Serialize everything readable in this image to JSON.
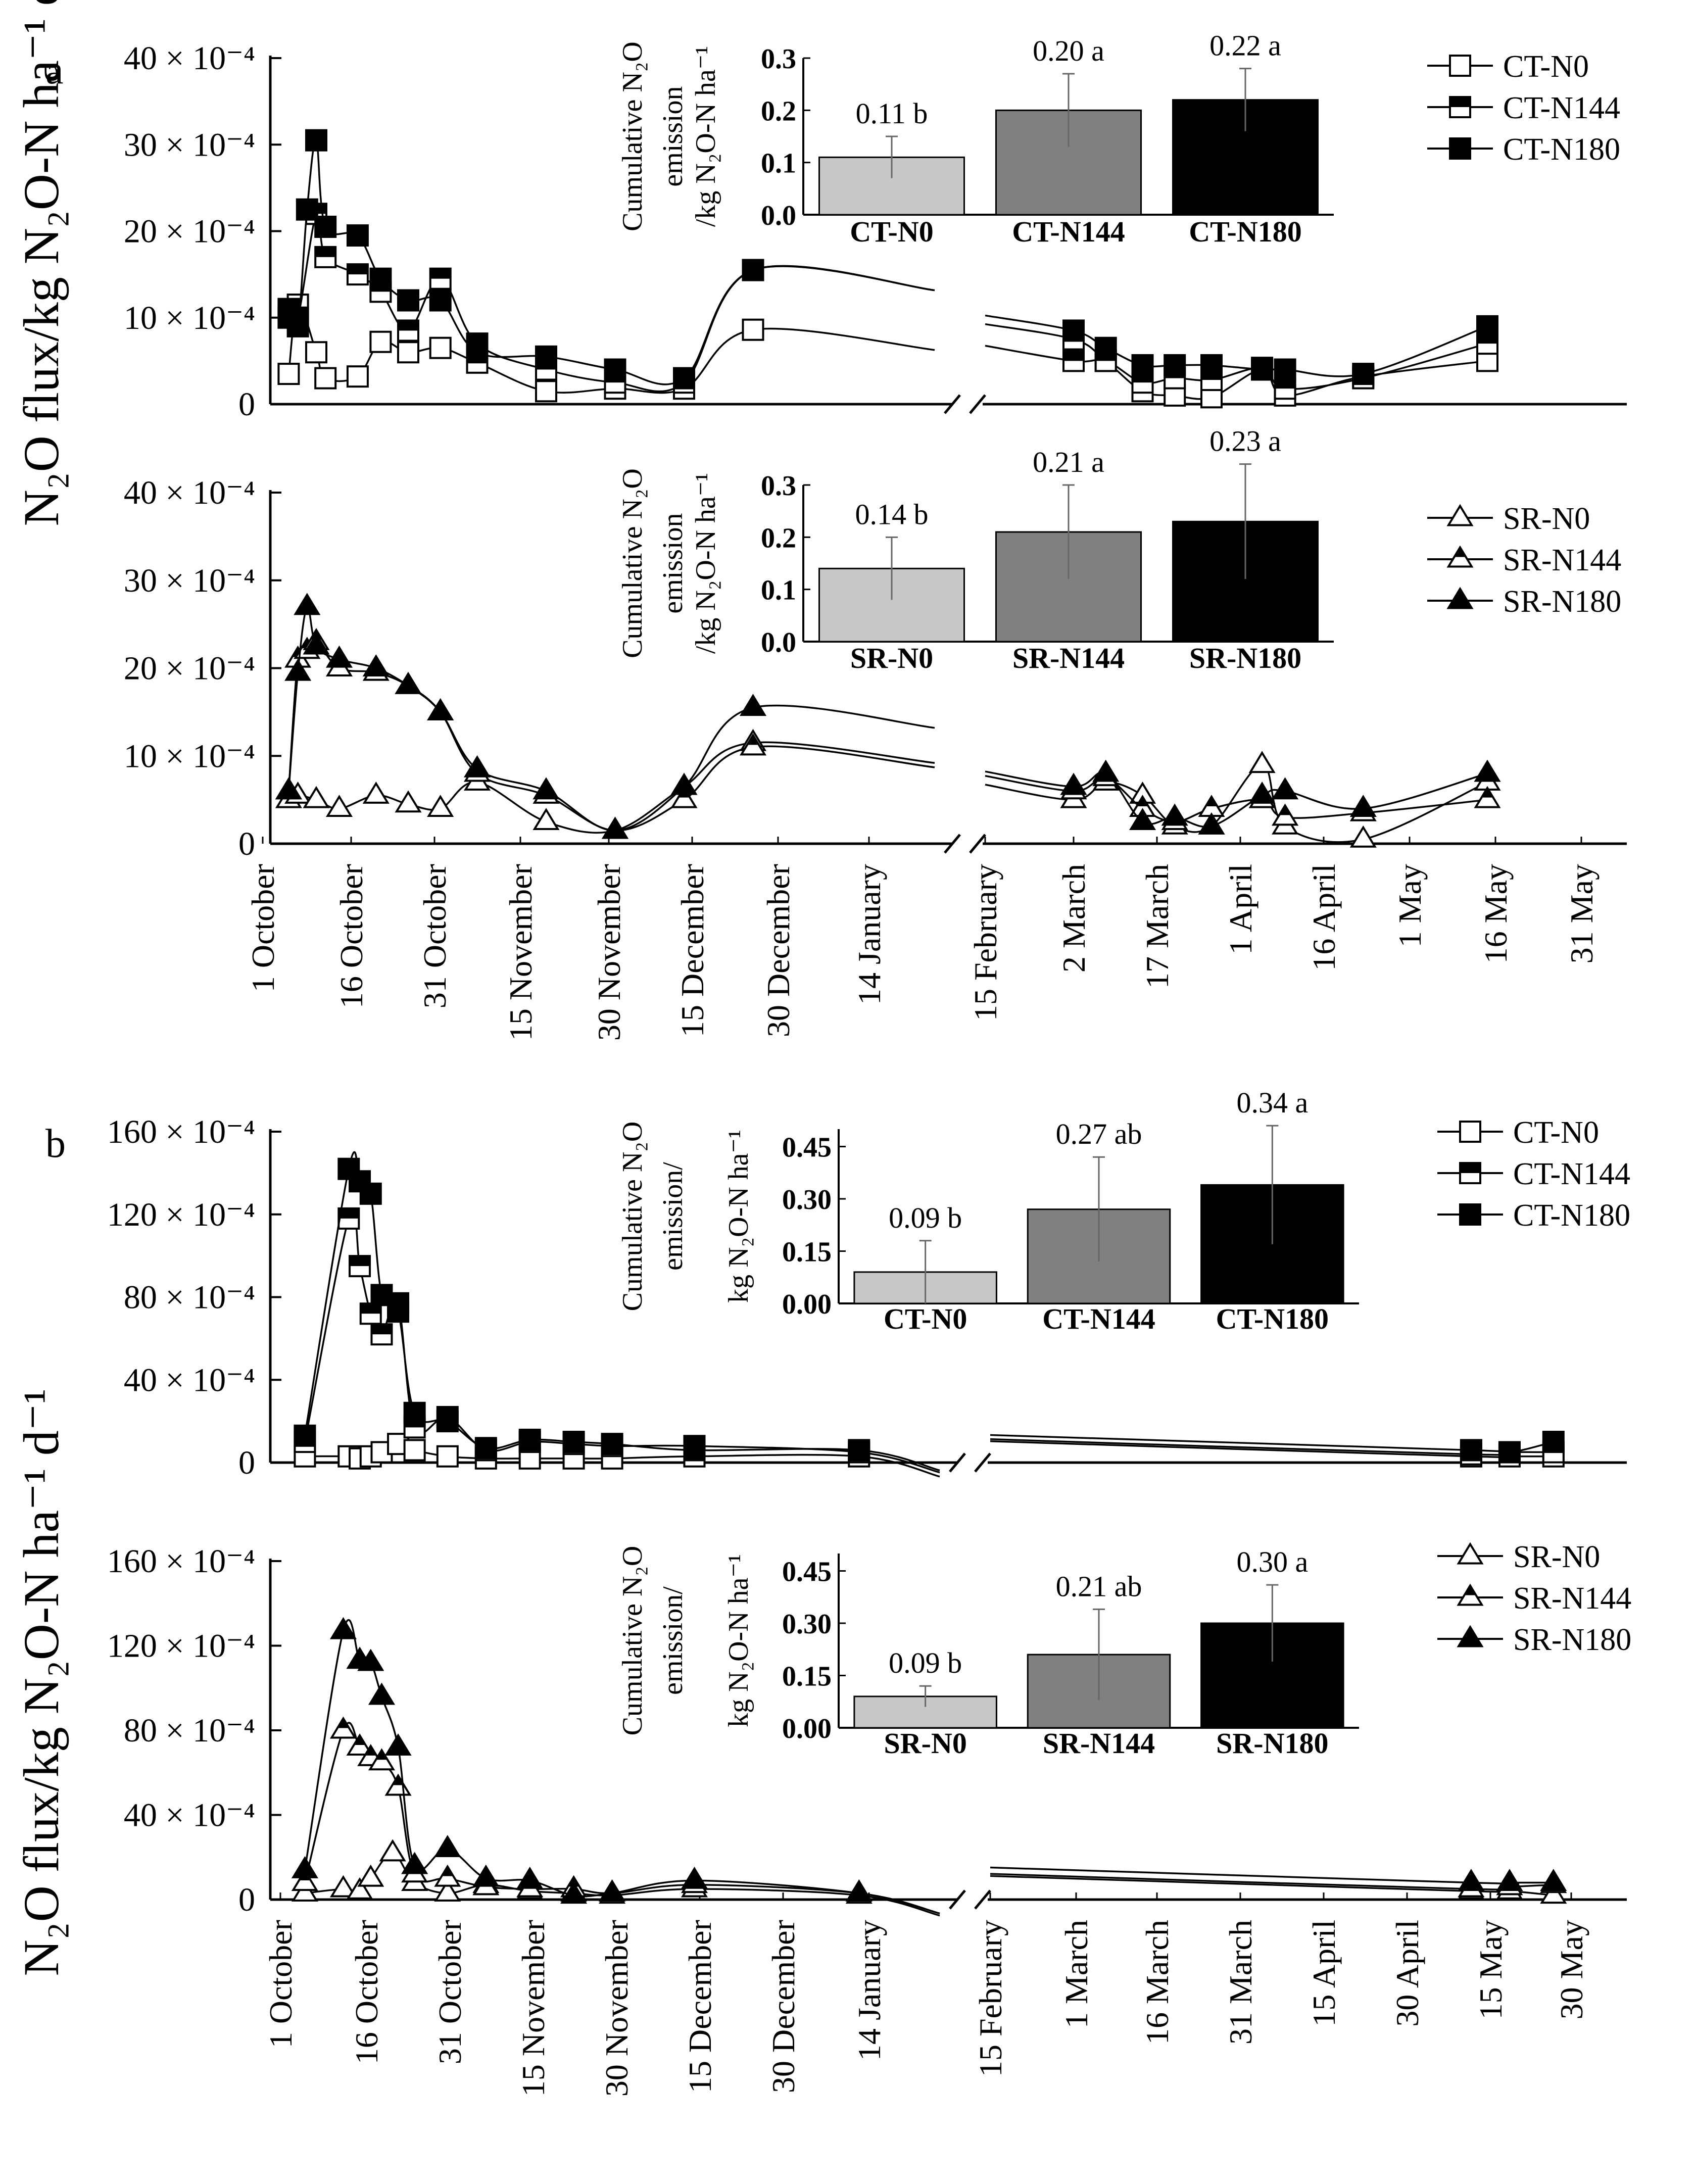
{
  "figure": {
    "y_axis_label": "N₂O flux/kg N₂O-N ha⁻¹ d⁻¹",
    "inset_ylabel_a": [
      "Cumulative N₂O",
      "emission",
      "/kg N₂O-N ha⁻¹"
    ],
    "inset_ylabel_b": [
      "Cumulative N₂O",
      "emission/",
      "kg N₂O-N ha⁻¹"
    ]
  },
  "chart_data": [
    {
      "panel_letter": "a",
      "type": "line",
      "ylim": [
        0,
        40
      ],
      "y_ticks": [
        0,
        10,
        20,
        30,
        40
      ],
      "y_tick_labels": [
        "0",
        "10 × 10⁻⁴",
        "20 × 10⁻⁴",
        "30 × 10⁻⁴",
        "40 × 10⁻⁴"
      ],
      "marker": "square",
      "series": [
        {
          "name": "CT-N0",
          "fill": "#ffffff",
          "x": [
            "2015-10-05",
            "2015-10-07",
            "2015-10-11",
            "2015-10-13",
            "2015-10-20",
            "2015-10-25",
            "2015-10-31",
            "2015-11-07",
            "2015-11-15",
            "2015-11-30",
            "2015-12-15",
            "2015-12-30",
            "2016-01-14",
            "2016-03-02",
            "2016-03-09",
            "2016-03-17",
            "2016-03-24",
            "2016-04-01",
            "2016-04-12",
            "2016-04-17",
            "2016-05-04",
            "2016-05-31"
          ],
          "y": [
            3.5,
            11.5,
            6,
            3,
            3.2,
            7.2,
            6,
            6.5,
            4.8,
            1.5,
            1.8,
            1.8,
            8.6,
            7.5,
            5,
            1.5,
            1,
            0.8,
            4,
            1,
            3.2,
            5
          ]
        },
        {
          "name": "CT-N144",
          "fill": "half",
          "x": [
            "2015-10-05",
            "2015-10-07",
            "2015-10-11",
            "2015-10-13",
            "2015-10-20",
            "2015-10-25",
            "2015-10-31",
            "2015-11-07",
            "2015-11-15",
            "2015-11-30",
            "2015-12-15",
            "2015-12-30",
            "2016-01-14",
            "2016-03-02",
            "2016-03-09",
            "2016-03-17",
            "2016-03-24",
            "2016-04-01",
            "2016-04-12",
            "2016-04-17",
            "2016-05-04",
            "2016-05-31"
          ],
          "y": [
            11,
            10,
            22,
            17,
            15,
            13,
            8.5,
            14.5,
            7,
            4,
            2.5,
            2.5,
            15.5,
            5,
            5,
            2.5,
            3,
            2.8,
            4.2,
            1.8,
            3,
            7
          ]
        },
        {
          "name": "CT-N180",
          "fill": "#000000",
          "x": [
            "2015-10-05",
            "2015-10-07",
            "2015-10-09",
            "2015-10-11",
            "2015-10-13",
            "2015-10-20",
            "2015-10-25",
            "2015-10-31",
            "2015-11-07",
            "2015-11-15",
            "2015-11-30",
            "2015-12-15",
            "2015-12-30",
            "2016-01-14",
            "2016-03-02",
            "2016-03-09",
            "2016-03-17",
            "2016-03-24",
            "2016-04-01",
            "2016-04-12",
            "2016-04-17",
            "2016-05-04",
            "2016-05-31"
          ],
          "y": [
            10,
            9,
            22.5,
            30.5,
            20.5,
            19.5,
            14.5,
            12,
            12,
            6,
            5.5,
            4,
            3,
            15.5,
            8.5,
            6.5,
            4.5,
            4.5,
            4.5,
            4,
            4,
            3.5,
            9
          ]
        }
      ],
      "inset": {
        "type": "bar",
        "categories": [
          "CT-N0",
          "CT-N144",
          "CT-N180"
        ],
        "values": [
          0.11,
          0.2,
          0.22
        ],
        "errors": [
          0.04,
          0.07,
          0.06
        ],
        "labels": [
          "0.11 b",
          "0.20 a",
          "0.22 a"
        ],
        "fills": [
          "#c8c8c8",
          "#808080",
          "#000000"
        ],
        "ylim": [
          0,
          0.3
        ],
        "y_ticks": [
          "0.0",
          "0.1",
          "0.2",
          "0.3"
        ]
      }
    },
    {
      "panel_letter": "",
      "type": "line",
      "ylim": [
        0,
        40
      ],
      "y_ticks": [
        0,
        10,
        20,
        30,
        40
      ],
      "y_tick_labels": [
        "0",
        "10 × 10⁻⁴",
        "20 × 10⁻⁴",
        "30 × 10⁻⁴",
        "40 × 10⁻⁴"
      ],
      "marker": "triangle",
      "x_tick_labels": [
        "1 October",
        "16 October",
        "31 October",
        "15 November",
        "30 November",
        "15 December",
        "30 December",
        "14 January",
        "15 February",
        "2 March",
        "17 March",
        "1 April",
        "16 April",
        "1 May",
        "16 May",
        "31 May"
      ],
      "series": [
        {
          "name": "SR-N0",
          "fill": "#ffffff",
          "x": [
            "2015-10-05",
            "2015-10-07",
            "2015-10-11",
            "2015-10-16",
            "2015-10-24",
            "2015-10-31",
            "2015-11-07",
            "2015-11-15",
            "2015-11-30",
            "2015-12-15",
            "2015-12-30",
            "2016-01-14",
            "2016-03-02",
            "2016-03-09",
            "2016-03-17",
            "2016-03-24",
            "2016-04-01",
            "2016-04-12",
            "2016-04-17",
            "2016-05-04",
            "2016-05-31"
          ],
          "y": [
            5,
            5.5,
            5,
            4,
            5.5,
            4.5,
            4,
            7,
            2.5,
            1.5,
            6.5,
            11.5,
            5,
            7,
            5.5,
            2,
            2,
            9,
            2,
            0.5,
            7
          ]
        },
        {
          "name": "SR-N144",
          "fill": "half",
          "x": [
            "2015-10-05",
            "2015-10-07",
            "2015-10-09",
            "2015-10-11",
            "2015-10-16",
            "2015-10-24",
            "2015-10-31",
            "2015-11-07",
            "2015-11-15",
            "2015-11-30",
            "2015-12-15",
            "2015-12-30",
            "2016-01-14",
            "2016-03-02",
            "2016-03-09",
            "2016-03-17",
            "2016-03-24",
            "2016-04-01",
            "2016-04-12",
            "2016-04-17",
            "2016-05-04",
            "2016-05-31"
          ],
          "y": [
            6,
            21,
            22,
            23,
            20,
            19.5,
            18,
            15,
            8,
            5.5,
            1.5,
            5,
            11,
            6,
            7.5,
            4,
            2.5,
            4,
            5,
            3,
            3.5,
            5
          ]
        },
        {
          "name": "SR-N180",
          "fill": "#000000",
          "x": [
            "2015-10-05",
            "2015-10-07",
            "2015-10-09",
            "2015-10-11",
            "2015-10-16",
            "2015-10-24",
            "2015-10-31",
            "2015-11-07",
            "2015-11-15",
            "2015-11-30",
            "2015-12-15",
            "2015-12-30",
            "2016-01-14",
            "2016-03-02",
            "2016-03-09",
            "2016-03-17",
            "2016-03-24",
            "2016-04-01",
            "2016-04-12",
            "2016-04-17",
            "2016-05-04",
            "2016-05-31"
          ],
          "y": [
            6,
            19.5,
            27,
            22.5,
            21,
            20,
            18,
            15,
            8.5,
            6,
            1.5,
            6.5,
            15.5,
            6.5,
            8,
            2.5,
            3,
            2,
            5.5,
            6,
            4,
            8
          ]
        }
      ],
      "inset": {
        "type": "bar",
        "categories": [
          "SR-N0",
          "SR-N144",
          "SR-N180"
        ],
        "values": [
          0.14,
          0.21,
          0.23
        ],
        "errors": [
          0.06,
          0.09,
          0.11
        ],
        "labels": [
          "0.14 b",
          "0.21 a",
          "0.23 a"
        ],
        "fills": [
          "#c8c8c8",
          "#808080",
          "#000000"
        ],
        "ylim": [
          0,
          0.3
        ],
        "y_ticks": [
          "0.0",
          "0.1",
          "0.2",
          "0.3"
        ]
      }
    },
    {
      "panel_letter": "b",
      "type": "line",
      "ylim": [
        0,
        160
      ],
      "y_ticks": [
        0,
        40,
        80,
        120,
        160
      ],
      "y_tick_labels": [
        "0",
        "40 × 10⁻⁴",
        "80 × 10⁻⁴",
        "120 × 10⁻⁴",
        "160 × 10⁻⁴"
      ],
      "marker": "square",
      "series": [
        {
          "name": "CT-N0",
          "fill": "#ffffff",
          "x": [
            "2016-10-05",
            "2016-10-13",
            "2016-10-15",
            "2016-10-17",
            "2016-10-19",
            "2016-10-22",
            "2016-10-25",
            "2016-10-31",
            "2016-11-07",
            "2016-11-15",
            "2016-11-23",
            "2016-11-30",
            "2016-12-15",
            "2017-01-14",
            "2017-05-12",
            "2017-05-19",
            "2017-05-27"
          ],
          "y": [
            3,
            3,
            2,
            3,
            5,
            9,
            6,
            3,
            2,
            2,
            2,
            2,
            3,
            3,
            3,
            3,
            3
          ]
        },
        {
          "name": "CT-N144",
          "fill": "half",
          "x": [
            "2016-10-05",
            "2016-10-13",
            "2016-10-15",
            "2016-10-17",
            "2016-10-19",
            "2016-10-22",
            "2016-10-25",
            "2016-10-31",
            "2016-11-07",
            "2016-11-15",
            "2016-11-23",
            "2016-11-30",
            "2016-12-15",
            "2017-01-14",
            "2017-05-12",
            "2017-05-19",
            "2017-05-27"
          ],
          "y": [
            10,
            118,
            95,
            72,
            62,
            77,
            17,
            22,
            6,
            10,
            9,
            8,
            8,
            5,
            4,
            5,
            5
          ]
        },
        {
          "name": "CT-N180",
          "fill": "#000000",
          "x": [
            "2016-10-05",
            "2016-10-13",
            "2016-10-15",
            "2016-10-17",
            "2016-10-19",
            "2016-10-22",
            "2016-10-25",
            "2016-10-31",
            "2016-11-07",
            "2016-11-15",
            "2016-11-23",
            "2016-11-30",
            "2016-12-15",
            "2017-01-14",
            "2017-05-12",
            "2017-05-19",
            "2017-05-27"
          ],
          "y": [
            13,
            142,
            136,
            130,
            81,
            73,
            24,
            20,
            7,
            11,
            10,
            9,
            6,
            6,
            6,
            5,
            10
          ]
        }
      ],
      "inset": {
        "type": "bar",
        "categories": [
          "CT-N0",
          "CT-N144",
          "CT-N180"
        ],
        "values": [
          0.09,
          0.27,
          0.34
        ],
        "errors": [
          0.09,
          0.15,
          0.17
        ],
        "labels": [
          "0.09 b",
          "0.27 ab",
          "0.34 a"
        ],
        "fills": [
          "#c8c8c8",
          "#808080",
          "#000000"
        ],
        "ylim": [
          0,
          0.5
        ],
        "y_ticks": [
          "0.00",
          "0.15",
          "0.30",
          "0.45"
        ]
      }
    },
    {
      "panel_letter": "",
      "type": "line",
      "ylim": [
        0,
        160
      ],
      "y_ticks": [
        0,
        40,
        80,
        120,
        160
      ],
      "y_tick_labels": [
        "0",
        "40 × 10⁻⁴",
        "80 × 10⁻⁴",
        "120 × 10⁻⁴",
        "160 × 10⁻⁴"
      ],
      "marker": "triangle",
      "x_tick_labels": [
        "1 October",
        "16 October",
        "31 October",
        "15 November",
        "30 November",
        "15 December",
        "30 December",
        "14 January",
        "15 February",
        "1 March",
        "16 March",
        "31 March",
        "15 April",
        "30 April",
        "15 May",
        "30 May"
      ],
      "series": [
        {
          "name": "SR-N0",
          "fill": "#ffffff",
          "x": [
            "2016-10-05",
            "2016-10-12",
            "2016-10-15",
            "2016-10-17",
            "2016-10-21",
            "2016-10-25",
            "2016-10-31",
            "2016-11-07",
            "2016-11-15",
            "2016-11-23",
            "2016-11-30",
            "2016-12-15",
            "2017-01-14",
            "2017-05-12",
            "2017-05-19",
            "2017-05-27"
          ],
          "y": [
            3,
            5,
            4,
            10,
            22,
            8,
            3,
            7,
            4,
            3,
            2,
            5,
            2,
            4,
            4,
            2
          ]
        },
        {
          "name": "SR-N144",
          "fill": "half",
          "x": [
            "2016-10-05",
            "2016-10-12",
            "2016-10-15",
            "2016-10-17",
            "2016-10-19",
            "2016-10-22",
            "2016-10-25",
            "2016-10-31",
            "2016-11-07",
            "2016-11-15",
            "2016-11-23",
            "2016-11-30",
            "2016-12-15",
            "2017-01-14",
            "2017-05-12",
            "2017-05-19",
            "2017-05-27"
          ],
          "y": [
            8,
            80,
            72,
            67,
            65,
            53,
            12,
            10,
            6,
            5,
            5,
            3,
            7,
            3,
            5,
            6,
            7
          ]
        },
        {
          "name": "SR-N180",
          "fill": "#000000",
          "x": [
            "2016-10-05",
            "2016-10-12",
            "2016-10-15",
            "2016-10-17",
            "2016-10-19",
            "2016-10-22",
            "2016-10-25",
            "2016-10-31",
            "2016-11-07",
            "2016-11-15",
            "2016-11-23",
            "2016-11-30",
            "2016-12-15",
            "2017-01-14",
            "2017-05-12",
            "2017-05-19",
            "2017-05-27"
          ],
          "y": [
            14,
            127,
            113,
            112,
            96,
            72,
            16,
            24,
            10,
            9,
            2,
            3,
            9,
            3,
            8,
            8,
            8
          ]
        }
      ],
      "inset": {
        "type": "bar",
        "categories": [
          "SR-N0",
          "SR-N144",
          "SR-N180"
        ],
        "values": [
          0.09,
          0.21,
          0.3
        ],
        "errors": [
          0.03,
          0.13,
          0.11
        ],
        "labels": [
          "0.09 b",
          "0.21 ab",
          "0.30 a"
        ],
        "fills": [
          "#c8c8c8",
          "#808080",
          "#000000"
        ],
        "ylim": [
          0,
          0.5
        ],
        "y_ticks": [
          "0.00",
          "0.15",
          "0.30",
          "0.45"
        ]
      }
    }
  ]
}
